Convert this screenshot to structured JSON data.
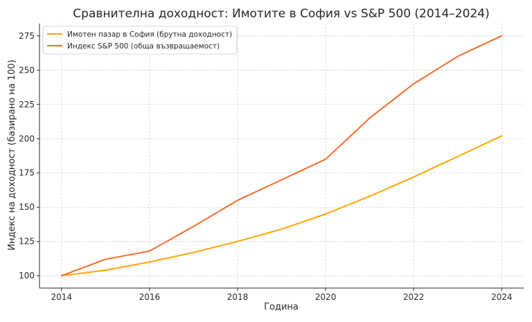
{
  "chart_data": {
    "type": "line",
    "title": "Сравнителна доходност: Имотите в София vs S&P 500 (2014–2024)",
    "xlabel": "Година",
    "ylabel": "Индекс на доходност (базирано на 100)",
    "x": [
      2014,
      2015,
      2016,
      2017,
      2018,
      2019,
      2020,
      2021,
      2022,
      2023,
      2024
    ],
    "xlim": [
      2013.5,
      2024.5
    ],
    "ylim": [
      91,
      284
    ],
    "x_ticks": [
      "2014",
      "2016",
      "2018",
      "2020",
      "2022",
      "2024"
    ],
    "y_ticks": [
      "100",
      "125",
      "150",
      "175",
      "200",
      "225",
      "250",
      "275"
    ],
    "grid": true,
    "legend_position": "top-left",
    "series": [
      {
        "name": "Имотен пазар в София (брутна доходност)",
        "color": "#FFA500",
        "values": [
          100,
          104,
          110,
          117,
          125,
          134,
          145,
          158,
          172,
          187,
          202
        ]
      },
      {
        "name": "Индекс S&P 500 (обща възвращаемост)",
        "color": "#F26B2A",
        "values": [
          100,
          112,
          118,
          136,
          155,
          170,
          185,
          215,
          240,
          260,
          275
        ]
      }
    ]
  }
}
